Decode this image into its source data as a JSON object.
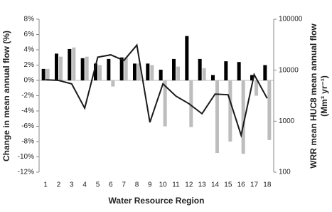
{
  "chart_data": {
    "type": "bar",
    "categories": [
      "1",
      "2",
      "3",
      "4",
      "5",
      "6",
      "7",
      "8",
      "9",
      "10",
      "11",
      "12",
      "13",
      "14",
      "15",
      "16",
      "17",
      "18"
    ],
    "xlabel": "Water Resource Region",
    "ylabel": "Change in mean annual flow (%)",
    "y2label": [
      "WRR mean HUC8 mean annual flow",
      "(Mm³ yr⁻¹)"
    ],
    "series": [
      {
        "color": "#000000",
        "values": [
          1.5,
          3.5,
          4.1,
          2.9,
          2.2,
          2.8,
          3.0,
          2.2,
          2.2,
          1.4,
          2.8,
          5.8,
          2.8,
          0.7,
          2.5,
          2.4,
          0.7,
          2.0
        ]
      },
      {
        "color": "#bdbdbd",
        "values": [
          1.5,
          3.1,
          4.3,
          3.1,
          2.0,
          -0.8,
          3.0,
          2.2,
          2.0,
          -6.0,
          1.8,
          -6.1,
          1.6,
          -9.5,
          -8.0,
          -9.6,
          -2.0,
          -7.8
        ]
      },
      {
        "type": "line",
        "axis": "y2",
        "color": "#1a1a1a",
        "values": [
          6500,
          6300,
          5400,
          1800,
          18000,
          20000,
          15500,
          31000,
          950,
          5400,
          3100,
          2200,
          1400,
          3400,
          3300,
          530,
          8200,
          2800
        ]
      }
    ],
    "ylim": [
      -12,
      8
    ],
    "yticks": [
      {
        "value": 8,
        "label": "8%"
      },
      {
        "value": 6,
        "label": "6%"
      },
      {
        "value": 4,
        "label": "4%"
      },
      {
        "value": 2,
        "label": "2%"
      },
      {
        "value": 0,
        "label": "0%"
      },
      {
        "value": -2,
        "label": "-2%"
      },
      {
        "value": -4,
        "label": "-4%"
      },
      {
        "value": -6,
        "label": "-6%"
      },
      {
        "value": -8,
        "label": "-8%"
      },
      {
        "value": -10,
        "label": "-10%"
      },
      {
        "value": -12,
        "label": "-12%"
      }
    ],
    "y2lim": [
      100,
      100000
    ],
    "y2ticks": [
      100000,
      10000,
      1000,
      100
    ],
    "y2log": true
  }
}
